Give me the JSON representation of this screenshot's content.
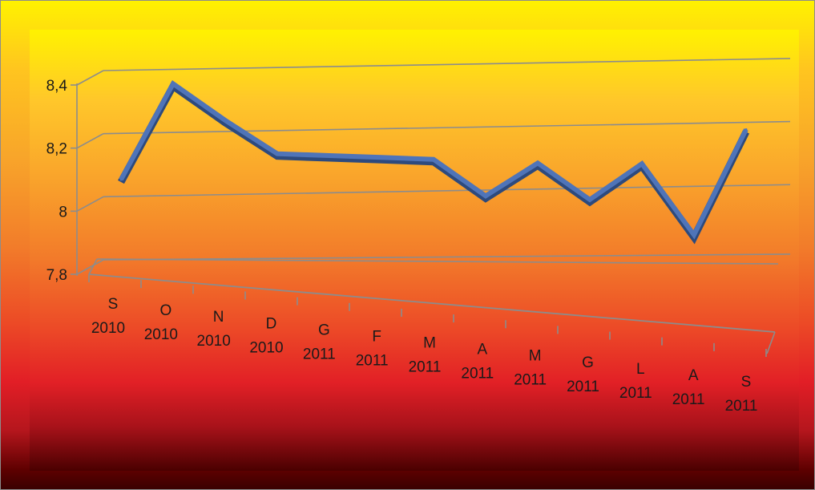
{
  "chart_data": {
    "type": "line",
    "categories": [
      [
        "S",
        "2010"
      ],
      [
        "O",
        "2010"
      ],
      [
        "N",
        "2010"
      ],
      [
        "D",
        "2010"
      ],
      [
        "G",
        "2011"
      ],
      [
        "F",
        "2011"
      ],
      [
        "M",
        "2011"
      ],
      [
        "A",
        "2011"
      ],
      [
        "M",
        "2011"
      ],
      [
        "G",
        "2011"
      ],
      [
        "L",
        "2011"
      ],
      [
        "A",
        "2011"
      ],
      [
        "S",
        "2011"
      ]
    ],
    "values": [
      8.1,
      8.41,
      8.3,
      8.2,
      8.2,
      8.2,
      8.2,
      8.09,
      8.2,
      8.09,
      8.21,
      7.99,
      8.33
    ],
    "yticks": [
      "7,8",
      "8",
      "8,2",
      "8,4"
    ],
    "ylim": [
      7.8,
      8.4
    ],
    "grid": true,
    "colors": {
      "line": "#4f74b8",
      "line_dark": "#2d4a7d",
      "grid": "#8c8c8c"
    }
  }
}
